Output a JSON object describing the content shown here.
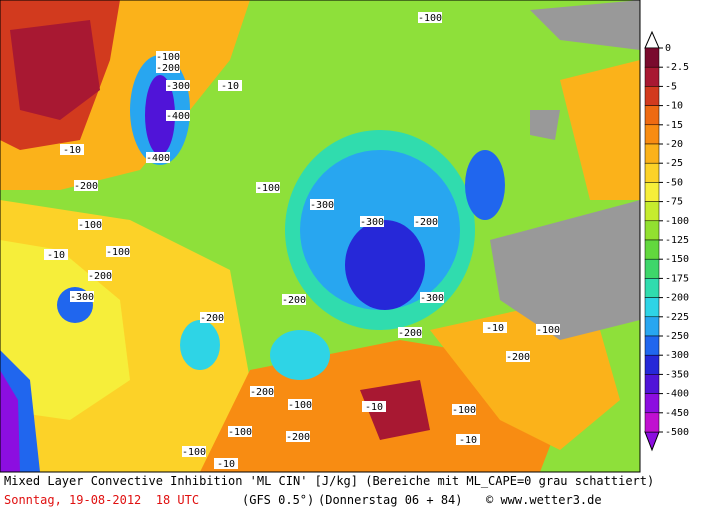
{
  "legend": {
    "labels": [
      "0",
      "-2.5",
      "-5",
      "-10",
      "-15",
      "-20",
      "-25",
      "-50",
      "-75",
      "-100",
      "-125",
      "-150",
      "-175",
      "-200",
      "-225",
      "-250",
      "-300",
      "-350",
      "-400",
      "-450",
      "-500"
    ],
    "colors": [
      "#7a0a2e",
      "#a81832",
      "#d23a1e",
      "#ee6a12",
      "#f88c12",
      "#fbb21a",
      "#fcd228",
      "#f6ee3a",
      "#c6ec2e",
      "#92e030",
      "#62d83e",
      "#3ed66a",
      "#30dcae",
      "#2ed4e6",
      "#28a6f0",
      "#2066ee",
      "#2628d8",
      "#5014d8",
      "#8c0ee0",
      "#c010d0"
    ]
  },
  "contour_labels": [
    "-100",
    "-200",
    "-300",
    "-400",
    "-400",
    "-10",
    "-10",
    "-200",
    "-100",
    "-10",
    "-100",
    "-200",
    "-300",
    "-300",
    "-300",
    "-200",
    "-100",
    "-200",
    "-200",
    "-300",
    "-200",
    "-100",
    "-10",
    "-200",
    "-100",
    "-10",
    "-100",
    "-200",
    "-10",
    "-100",
    "-200",
    "-100",
    "-10",
    "-100"
  ],
  "footer": {
    "line1": "Mixed Layer Convective Inhibition 'ML CIN' [J/kg] (Bereiche mit ML_CAPE=0 grau schattiert)",
    "date": "Sonntag, 19-08-2012  18 UTC",
    "model": "(GFS 0.5°)",
    "run": "(Donnerstag 06 + 84)",
    "credit": "© www.wetter3.de"
  }
}
